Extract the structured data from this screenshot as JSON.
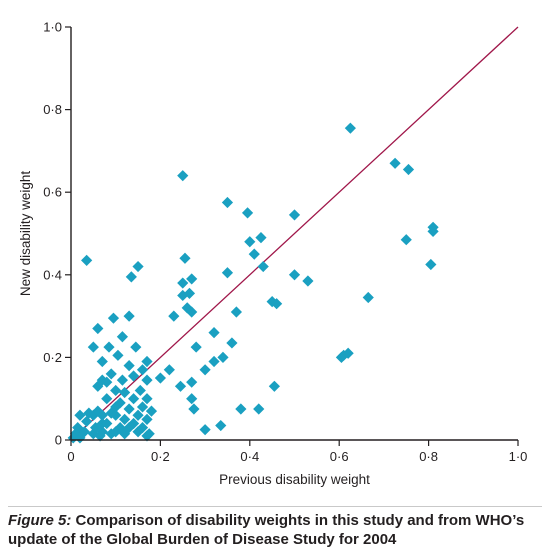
{
  "colors": {
    "marker": "#1aa0c1",
    "identity_line": "#a0174a",
    "axis": "#231f20",
    "text": "#231f20"
  },
  "caption": {
    "label": "Figure 5:",
    "text": " Comparison of disability weights in this study and from WHO’s update of the Global Burden of Disease Study for 2004"
  },
  "chart_data": {
    "type": "scatter",
    "title": "",
    "xlabel": "Previous disability weight",
    "ylabel": "New disability weight",
    "xlim": [
      0,
      1.0
    ],
    "ylim": [
      0,
      1.0
    ],
    "x_ticks": [
      0,
      0.2,
      0.4,
      0.6,
      0.8,
      1.0
    ],
    "y_ticks": [
      0,
      0.2,
      0.4,
      0.6,
      0.8,
      1.0
    ],
    "x_tick_labels": [
      "0",
      "0·2",
      "0·4",
      "0·6",
      "0·8",
      "1·0"
    ],
    "y_tick_labels": [
      "0",
      "0·2",
      "0·4",
      "0·6",
      "0·8",
      "1·0"
    ],
    "grid": false,
    "legend": "none",
    "marker": "diamond",
    "reference_line": {
      "type": "identity",
      "from": [
        0,
        0
      ],
      "to": [
        1.0,
        1.0
      ]
    },
    "points": [
      [
        0.005,
        0.005
      ],
      [
        0.01,
        0.015
      ],
      [
        0.015,
        0.03
      ],
      [
        0.02,
        0.005
      ],
      [
        0.02,
        0.06
      ],
      [
        0.03,
        0.02
      ],
      [
        0.035,
        0.045
      ],
      [
        0.04,
        0.065
      ],
      [
        0.035,
        0.435
      ],
      [
        0.05,
        0.015
      ],
      [
        0.05,
        0.06
      ],
      [
        0.055,
        0.03
      ],
      [
        0.05,
        0.225
      ],
      [
        0.06,
        0.07
      ],
      [
        0.06,
        0.13
      ],
      [
        0.065,
        0.01
      ],
      [
        0.06,
        0.27
      ],
      [
        0.07,
        0.02
      ],
      [
        0.07,
        0.06
      ],
      [
        0.07,
        0.145
      ],
      [
        0.07,
        0.19
      ],
      [
        0.07,
        0.04
      ],
      [
        0.08,
        0.04
      ],
      [
        0.08,
        0.1
      ],
      [
        0.08,
        0.14
      ],
      [
        0.085,
        0.225
      ],
      [
        0.09,
        0.015
      ],
      [
        0.09,
        0.065
      ],
      [
        0.09,
        0.16
      ],
      [
        0.095,
        0.295
      ],
      [
        0.1,
        0.02
      ],
      [
        0.1,
        0.06
      ],
      [
        0.1,
        0.08
      ],
      [
        0.1,
        0.12
      ],
      [
        0.105,
        0.205
      ],
      [
        0.11,
        0.03
      ],
      [
        0.11,
        0.09
      ],
      [
        0.115,
        0.145
      ],
      [
        0.115,
        0.25
      ],
      [
        0.12,
        0.015
      ],
      [
        0.12,
        0.05
      ],
      [
        0.12,
        0.115
      ],
      [
        0.13,
        0.03
      ],
      [
        0.13,
        0.075
      ],
      [
        0.13,
        0.18
      ],
      [
        0.13,
        0.3
      ],
      [
        0.135,
        0.395
      ],
      [
        0.14,
        0.04
      ],
      [
        0.14,
        0.1
      ],
      [
        0.14,
        0.155
      ],
      [
        0.145,
        0.225
      ],
      [
        0.15,
        0.02
      ],
      [
        0.15,
        0.06
      ],
      [
        0.155,
        0.12
      ],
      [
        0.15,
        0.42
      ],
      [
        0.16,
        0.03
      ],
      [
        0.16,
        0.08
      ],
      [
        0.16,
        0.17
      ],
      [
        0.17,
        0.01
      ],
      [
        0.17,
        0.05
      ],
      [
        0.17,
        0.1
      ],
      [
        0.17,
        0.145
      ],
      [
        0.17,
        0.19
      ],
      [
        0.175,
        0.015
      ],
      [
        0.18,
        0.07
      ],
      [
        0.2,
        0.15
      ],
      [
        0.22,
        0.17
      ],
      [
        0.23,
        0.3
      ],
      [
        0.245,
        0.13
      ],
      [
        0.25,
        0.38
      ],
      [
        0.25,
        0.35
      ],
      [
        0.255,
        0.44
      ],
      [
        0.25,
        0.64
      ],
      [
        0.26,
        0.32
      ],
      [
        0.265,
        0.355
      ],
      [
        0.27,
        0.31
      ],
      [
        0.27,
        0.39
      ],
      [
        0.27,
        0.1
      ],
      [
        0.27,
        0.14
      ],
      [
        0.28,
        0.225
      ],
      [
        0.275,
        0.075
      ],
      [
        0.3,
        0.025
      ],
      [
        0.3,
        0.17
      ],
      [
        0.32,
        0.19
      ],
      [
        0.32,
        0.26
      ],
      [
        0.335,
        0.035
      ],
      [
        0.34,
        0.2
      ],
      [
        0.35,
        0.405
      ],
      [
        0.35,
        0.575
      ],
      [
        0.36,
        0.235
      ],
      [
        0.37,
        0.31
      ],
      [
        0.38,
        0.075
      ],
      [
        0.395,
        0.55
      ],
      [
        0.4,
        0.48
      ],
      [
        0.41,
        0.45
      ],
      [
        0.42,
        0.075
      ],
      [
        0.425,
        0.49
      ],
      [
        0.43,
        0.42
      ],
      [
        0.45,
        0.335
      ],
      [
        0.455,
        0.13
      ],
      [
        0.46,
        0.33
      ],
      [
        0.5,
        0.545
      ],
      [
        0.5,
        0.4
      ],
      [
        0.53,
        0.385
      ],
      [
        0.605,
        0.2
      ],
      [
        0.61,
        0.205
      ],
      [
        0.62,
        0.21
      ],
      [
        0.625,
        0.755
      ],
      [
        0.665,
        0.345
      ],
      [
        0.725,
        0.67
      ],
      [
        0.755,
        0.655
      ],
      [
        0.75,
        0.485
      ],
      [
        0.805,
        0.425
      ],
      [
        0.81,
        0.505
      ],
      [
        0.81,
        0.515
      ]
    ]
  }
}
